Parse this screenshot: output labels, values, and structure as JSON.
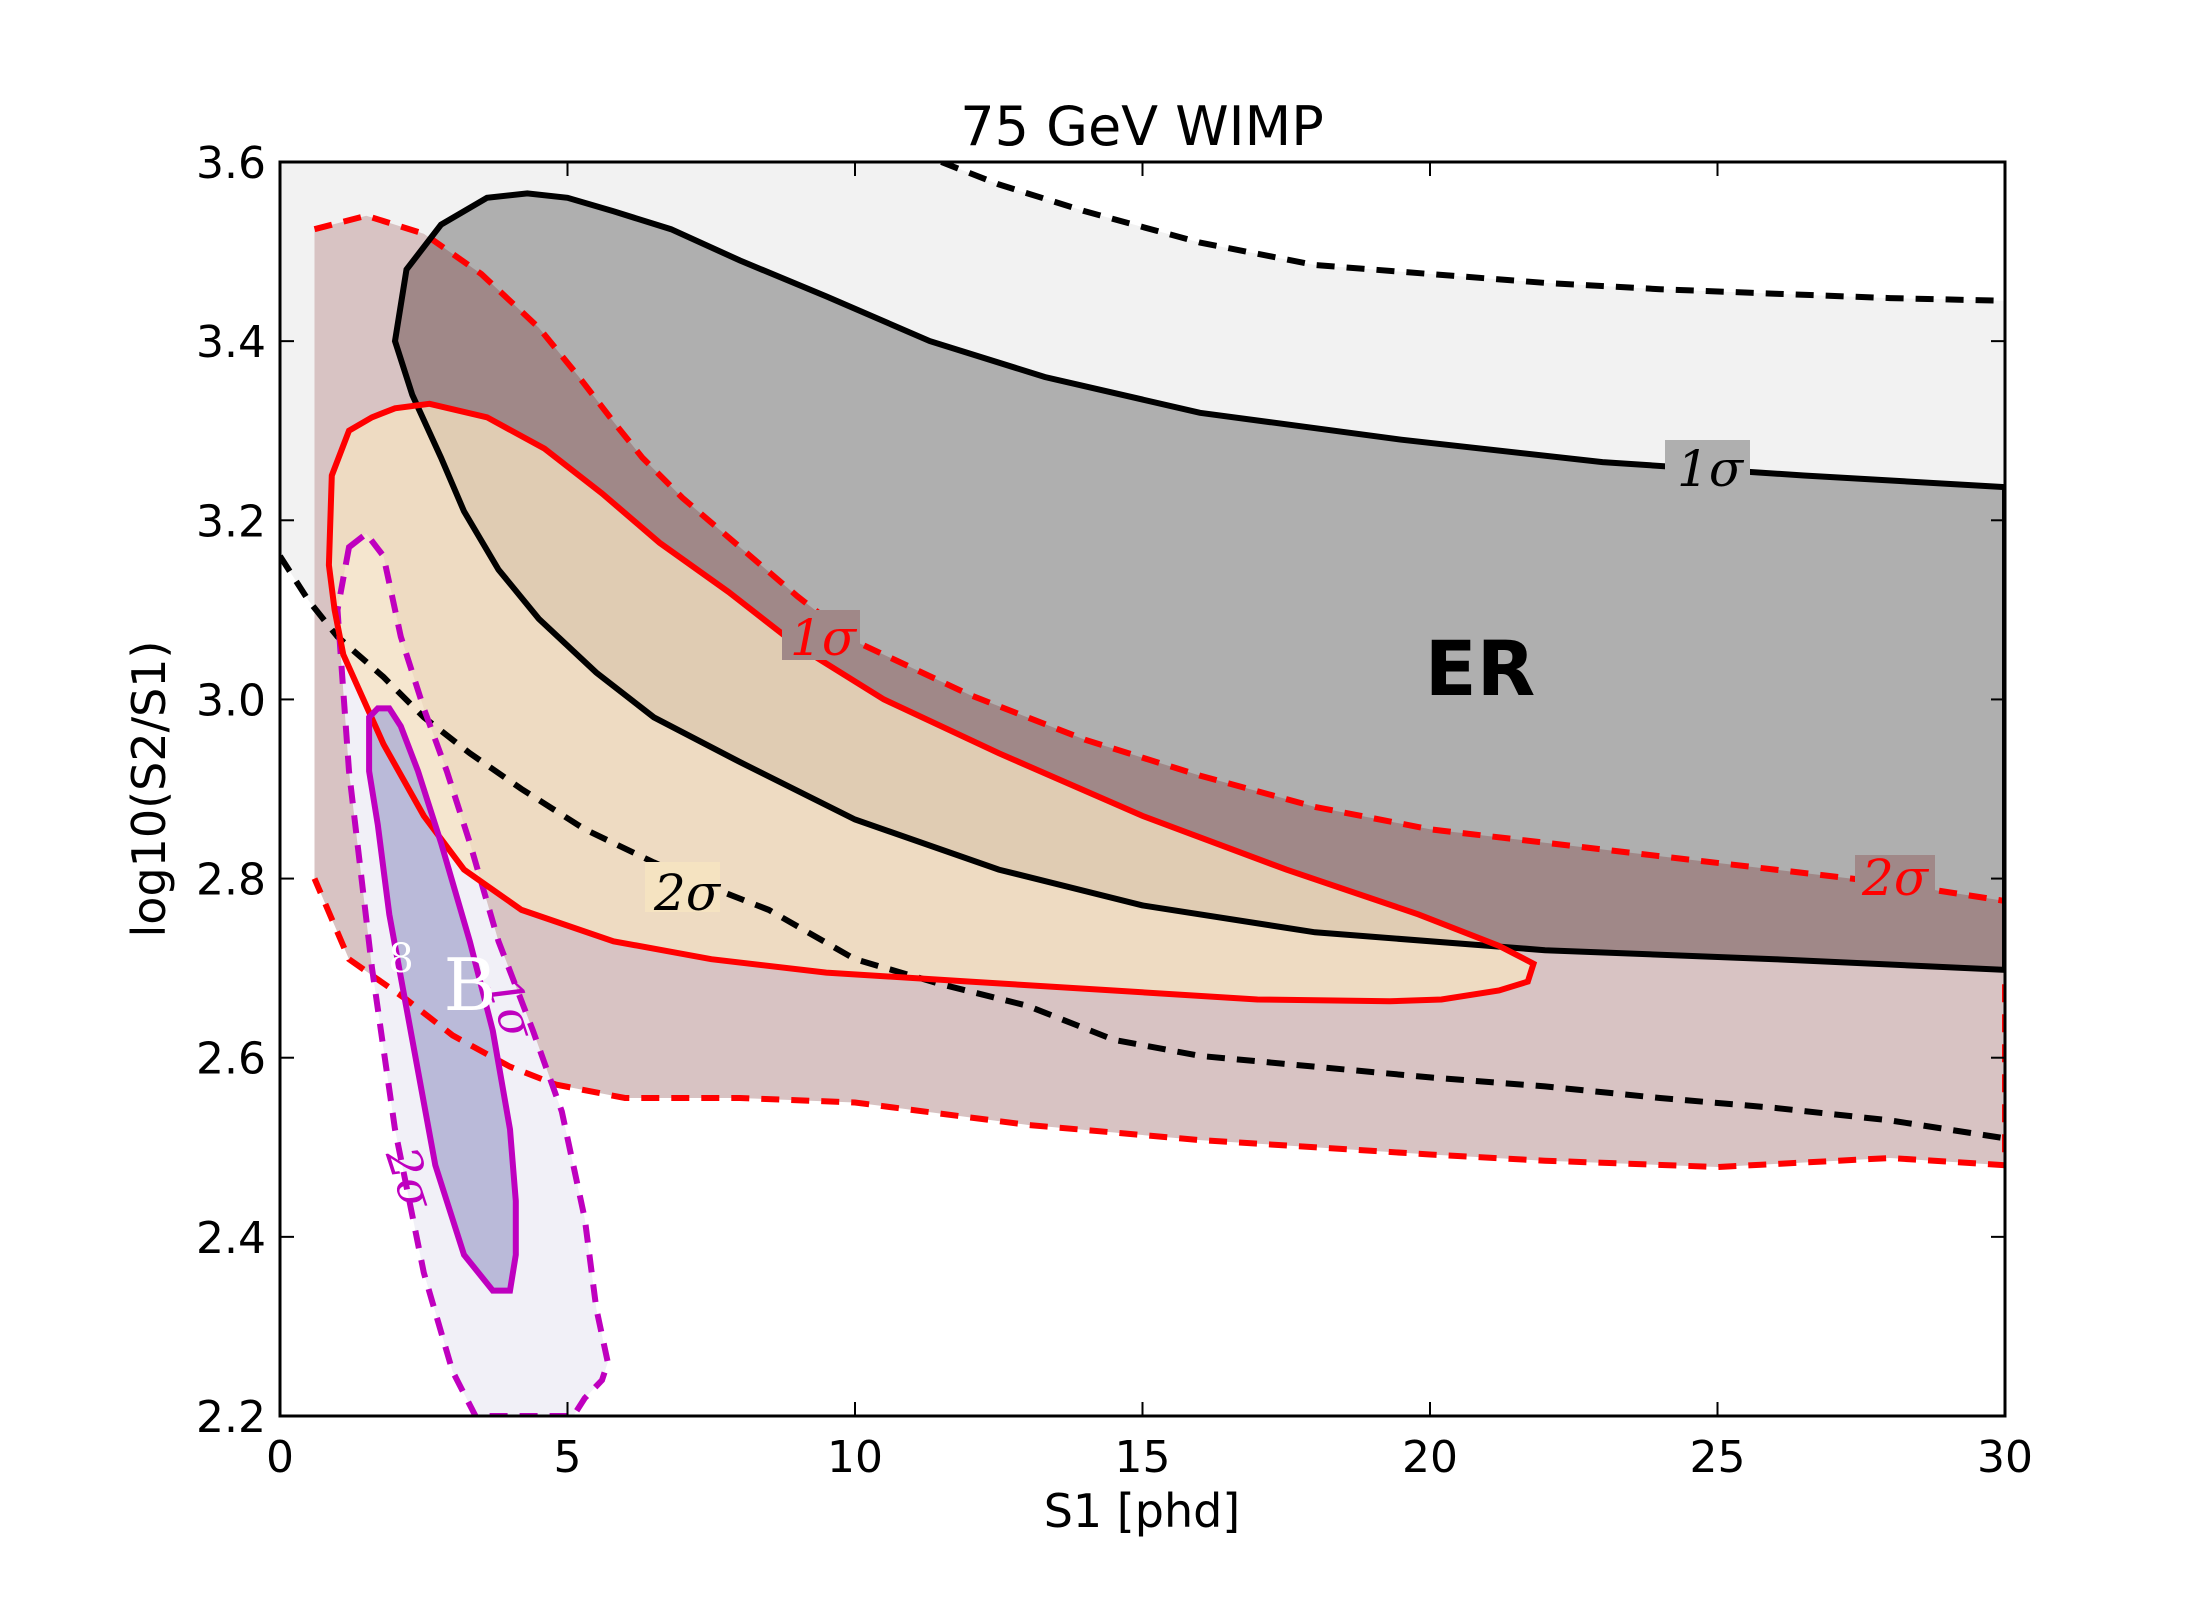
{
  "chart_data": {
    "type": "contour",
    "title": "75 GeV WIMP",
    "xlabel": "S1 [phd]",
    "ylabel": "log10(S2/S1)",
    "xlim": [
      0,
      30
    ],
    "ylim": [
      2.2,
      3.6
    ],
    "xticks": [
      "0",
      "5",
      "10",
      "15",
      "20",
      "25",
      "30"
    ],
    "yticks": [
      "2.2",
      "2.4",
      "2.6",
      "2.8",
      "3.0",
      "3.2",
      "3.4",
      "3.6"
    ],
    "grid": false,
    "annotations": {
      "er": "ER",
      "boron_mass": "8",
      "boron_symbol": "B"
    },
    "contour_sets": [
      {
        "name": "ER",
        "color": "#000000",
        "fill_1sigma": "#afafaf",
        "fill_2sigma": "#f2f2f2",
        "label_1sigma": "1σ",
        "label_2sigma": "2σ",
        "sigma1": [
          [
            2.0,
            3.4
          ],
          [
            2.2,
            3.48
          ],
          [
            2.8,
            3.53
          ],
          [
            3.6,
            3.56
          ],
          [
            4.3,
            3.565
          ],
          [
            5.0,
            3.56
          ],
          [
            5.8,
            3.545
          ],
          [
            6.8,
            3.525
          ],
          [
            8.0,
            3.49
          ],
          [
            9.5,
            3.45
          ],
          [
            11.3,
            3.4
          ],
          [
            13.3,
            3.36
          ],
          [
            16.0,
            3.32
          ],
          [
            19.5,
            3.29
          ],
          [
            23.0,
            3.265
          ],
          [
            26.5,
            3.25
          ],
          [
            30.0,
            3.237
          ],
          [
            30.0,
            2.698
          ],
          [
            26.0,
            2.71
          ],
          [
            22.0,
            2.72
          ],
          [
            18.0,
            2.74
          ],
          [
            15.0,
            2.77
          ],
          [
            12.5,
            2.81
          ],
          [
            10.0,
            2.866
          ],
          [
            8.0,
            2.93
          ],
          [
            6.5,
            2.98
          ],
          [
            5.5,
            3.03
          ],
          [
            4.5,
            3.09
          ],
          [
            3.8,
            3.145
          ],
          [
            3.2,
            3.21
          ],
          [
            2.8,
            3.27
          ],
          [
            2.3,
            3.34
          ],
          [
            2.0,
            3.4
          ]
        ],
        "sigma2_upper": [
          [
            11.5,
            3.6
          ],
          [
            12.5,
            3.575
          ],
          [
            14.0,
            3.545
          ],
          [
            16.0,
            3.51
          ],
          [
            18.0,
            3.485
          ],
          [
            20.0,
            3.475
          ],
          [
            22.0,
            3.465
          ],
          [
            24.0,
            3.458
          ],
          [
            26.0,
            3.453
          ],
          [
            28.0,
            3.448
          ],
          [
            30.0,
            3.445
          ]
        ],
        "sigma2_lower": [
          [
            0.0,
            3.16
          ],
          [
            0.5,
            3.11
          ],
          [
            1.0,
            3.07
          ],
          [
            1.8,
            3.025
          ],
          [
            2.5,
            2.98
          ],
          [
            3.3,
            2.94
          ],
          [
            4.2,
            2.9
          ],
          [
            5.3,
            2.855
          ],
          [
            6.5,
            2.818
          ],
          [
            7.5,
            2.79
          ],
          [
            8.5,
            2.765
          ],
          [
            10.0,
            2.71
          ],
          [
            11.5,
            2.682
          ],
          [
            13.0,
            2.658
          ],
          [
            14.5,
            2.62
          ],
          [
            16.0,
            2.602
          ],
          [
            18.0,
            2.59
          ],
          [
            20.0,
            2.578
          ],
          [
            22.0,
            2.568
          ],
          [
            24.0,
            2.555
          ],
          [
            26.0,
            2.544
          ],
          [
            28.0,
            2.53
          ],
          [
            30.0,
            2.51
          ]
        ]
      },
      {
        "name": "WIMP",
        "color": "#ff0000",
        "fill_1sigma": "#f5e3c1",
        "fill_2sigma_outer": "#d8c3c3",
        "fill_2sigma_inner": "#a08888",
        "label_1sigma": "1σ",
        "label_2sigma": "2σ",
        "sigma1": [
          [
            0.9,
            3.25
          ],
          [
            1.2,
            3.3
          ],
          [
            1.6,
            3.315
          ],
          [
            2.0,
            3.325
          ],
          [
            2.6,
            3.33
          ],
          [
            3.6,
            3.315
          ],
          [
            4.6,
            3.28
          ],
          [
            5.6,
            3.23
          ],
          [
            6.6,
            3.175
          ],
          [
            7.8,
            3.12
          ],
          [
            9.0,
            3.06
          ],
          [
            10.5,
            3.0
          ],
          [
            12.5,
            2.94
          ],
          [
            15.0,
            2.87
          ],
          [
            17.5,
            2.81
          ],
          [
            19.8,
            2.76
          ],
          [
            21.2,
            2.725
          ],
          [
            21.8,
            2.705
          ],
          [
            21.7,
            2.685
          ],
          [
            21.2,
            2.675
          ],
          [
            20.2,
            2.665
          ],
          [
            19.3,
            2.663
          ],
          [
            17.0,
            2.665
          ],
          [
            14.5,
            2.675
          ],
          [
            12.0,
            2.685
          ],
          [
            9.5,
            2.695
          ],
          [
            7.5,
            2.71
          ],
          [
            5.8,
            2.73
          ],
          [
            4.2,
            2.765
          ],
          [
            3.2,
            2.81
          ],
          [
            2.5,
            2.87
          ],
          [
            1.8,
            2.95
          ],
          [
            1.1,
            3.05
          ],
          [
            0.95,
            3.1
          ],
          [
            0.85,
            3.15
          ],
          [
            0.9,
            3.25
          ]
        ],
        "sigma2": [
          [
            0.6,
            3.525
          ],
          [
            1.5,
            3.54
          ],
          [
            2.5,
            3.52
          ],
          [
            3.5,
            3.475
          ],
          [
            4.5,
            3.415
          ],
          [
            5.2,
            3.36
          ],
          [
            5.8,
            3.31
          ],
          [
            6.3,
            3.27
          ],
          [
            7.0,
            3.225
          ],
          [
            8.0,
            3.17
          ],
          [
            9.0,
            3.115
          ],
          [
            10.0,
            3.065
          ],
          [
            12.0,
            3.005
          ],
          [
            14.0,
            2.955
          ],
          [
            16.0,
            2.915
          ],
          [
            18.0,
            2.88
          ],
          [
            20.0,
            2.855
          ],
          [
            22.0,
            2.84
          ],
          [
            24.0,
            2.825
          ],
          [
            26.0,
            2.81
          ],
          [
            28.0,
            2.795
          ],
          [
            30.0,
            2.775
          ],
          [
            30.0,
            2.48
          ],
          [
            28.0,
            2.488
          ],
          [
            25.0,
            2.478
          ],
          [
            22.0,
            2.485
          ],
          [
            20.0,
            2.492
          ],
          [
            16.0,
            2.508
          ],
          [
            13.0,
            2.525
          ],
          [
            10.0,
            2.55
          ],
          [
            8.0,
            2.555
          ],
          [
            6.0,
            2.555
          ],
          [
            4.8,
            2.57
          ],
          [
            4.0,
            2.59
          ],
          [
            3.0,
            2.625
          ],
          [
            2.2,
            2.665
          ],
          [
            1.2,
            2.71
          ],
          [
            0.6,
            2.8
          ],
          [
            0.6,
            3.525
          ]
        ]
      },
      {
        "name": "8B",
        "color": "#bf00bf",
        "fill_1sigma": "#b0b0d4",
        "fill_2sigma": "#f1f0f7",
        "label_1sigma": "1σ",
        "label_2sigma": "2σ",
        "sigma1": [
          [
            1.55,
            2.98
          ],
          [
            1.7,
            2.99
          ],
          [
            1.9,
            2.99
          ],
          [
            2.1,
            2.97
          ],
          [
            2.4,
            2.92
          ],
          [
            2.8,
            2.84
          ],
          [
            3.3,
            2.73
          ],
          [
            3.7,
            2.63
          ],
          [
            4.0,
            2.52
          ],
          [
            4.1,
            2.44
          ],
          [
            4.1,
            2.38
          ],
          [
            4.0,
            2.34
          ],
          [
            3.7,
            2.34
          ],
          [
            3.2,
            2.38
          ],
          [
            2.7,
            2.48
          ],
          [
            2.3,
            2.62
          ],
          [
            1.9,
            2.76
          ],
          [
            1.7,
            2.86
          ],
          [
            1.55,
            2.92
          ],
          [
            1.55,
            2.98
          ]
        ],
        "sigma2": [
          [
            1.2,
            3.17
          ],
          [
            1.5,
            3.185
          ],
          [
            1.8,
            3.16
          ],
          [
            2.1,
            3.07
          ],
          [
            2.5,
            2.99
          ],
          [
            2.9,
            2.92
          ],
          [
            3.3,
            2.84
          ],
          [
            3.8,
            2.73
          ],
          [
            4.4,
            2.63
          ],
          [
            4.9,
            2.54
          ],
          [
            5.3,
            2.42
          ],
          [
            5.5,
            2.32
          ],
          [
            5.7,
            2.26
          ],
          [
            5.6,
            2.24
          ],
          [
            5.3,
            2.22
          ],
          [
            5.1,
            2.2
          ],
          [
            3.4,
            2.2
          ],
          [
            3.0,
            2.25
          ],
          [
            2.5,
            2.36
          ],
          [
            2.0,
            2.52
          ],
          [
            1.6,
            2.7
          ],
          [
            1.2,
            2.92
          ],
          [
            1.0,
            3.1
          ],
          [
            1.2,
            3.17
          ]
        ]
      }
    ]
  }
}
